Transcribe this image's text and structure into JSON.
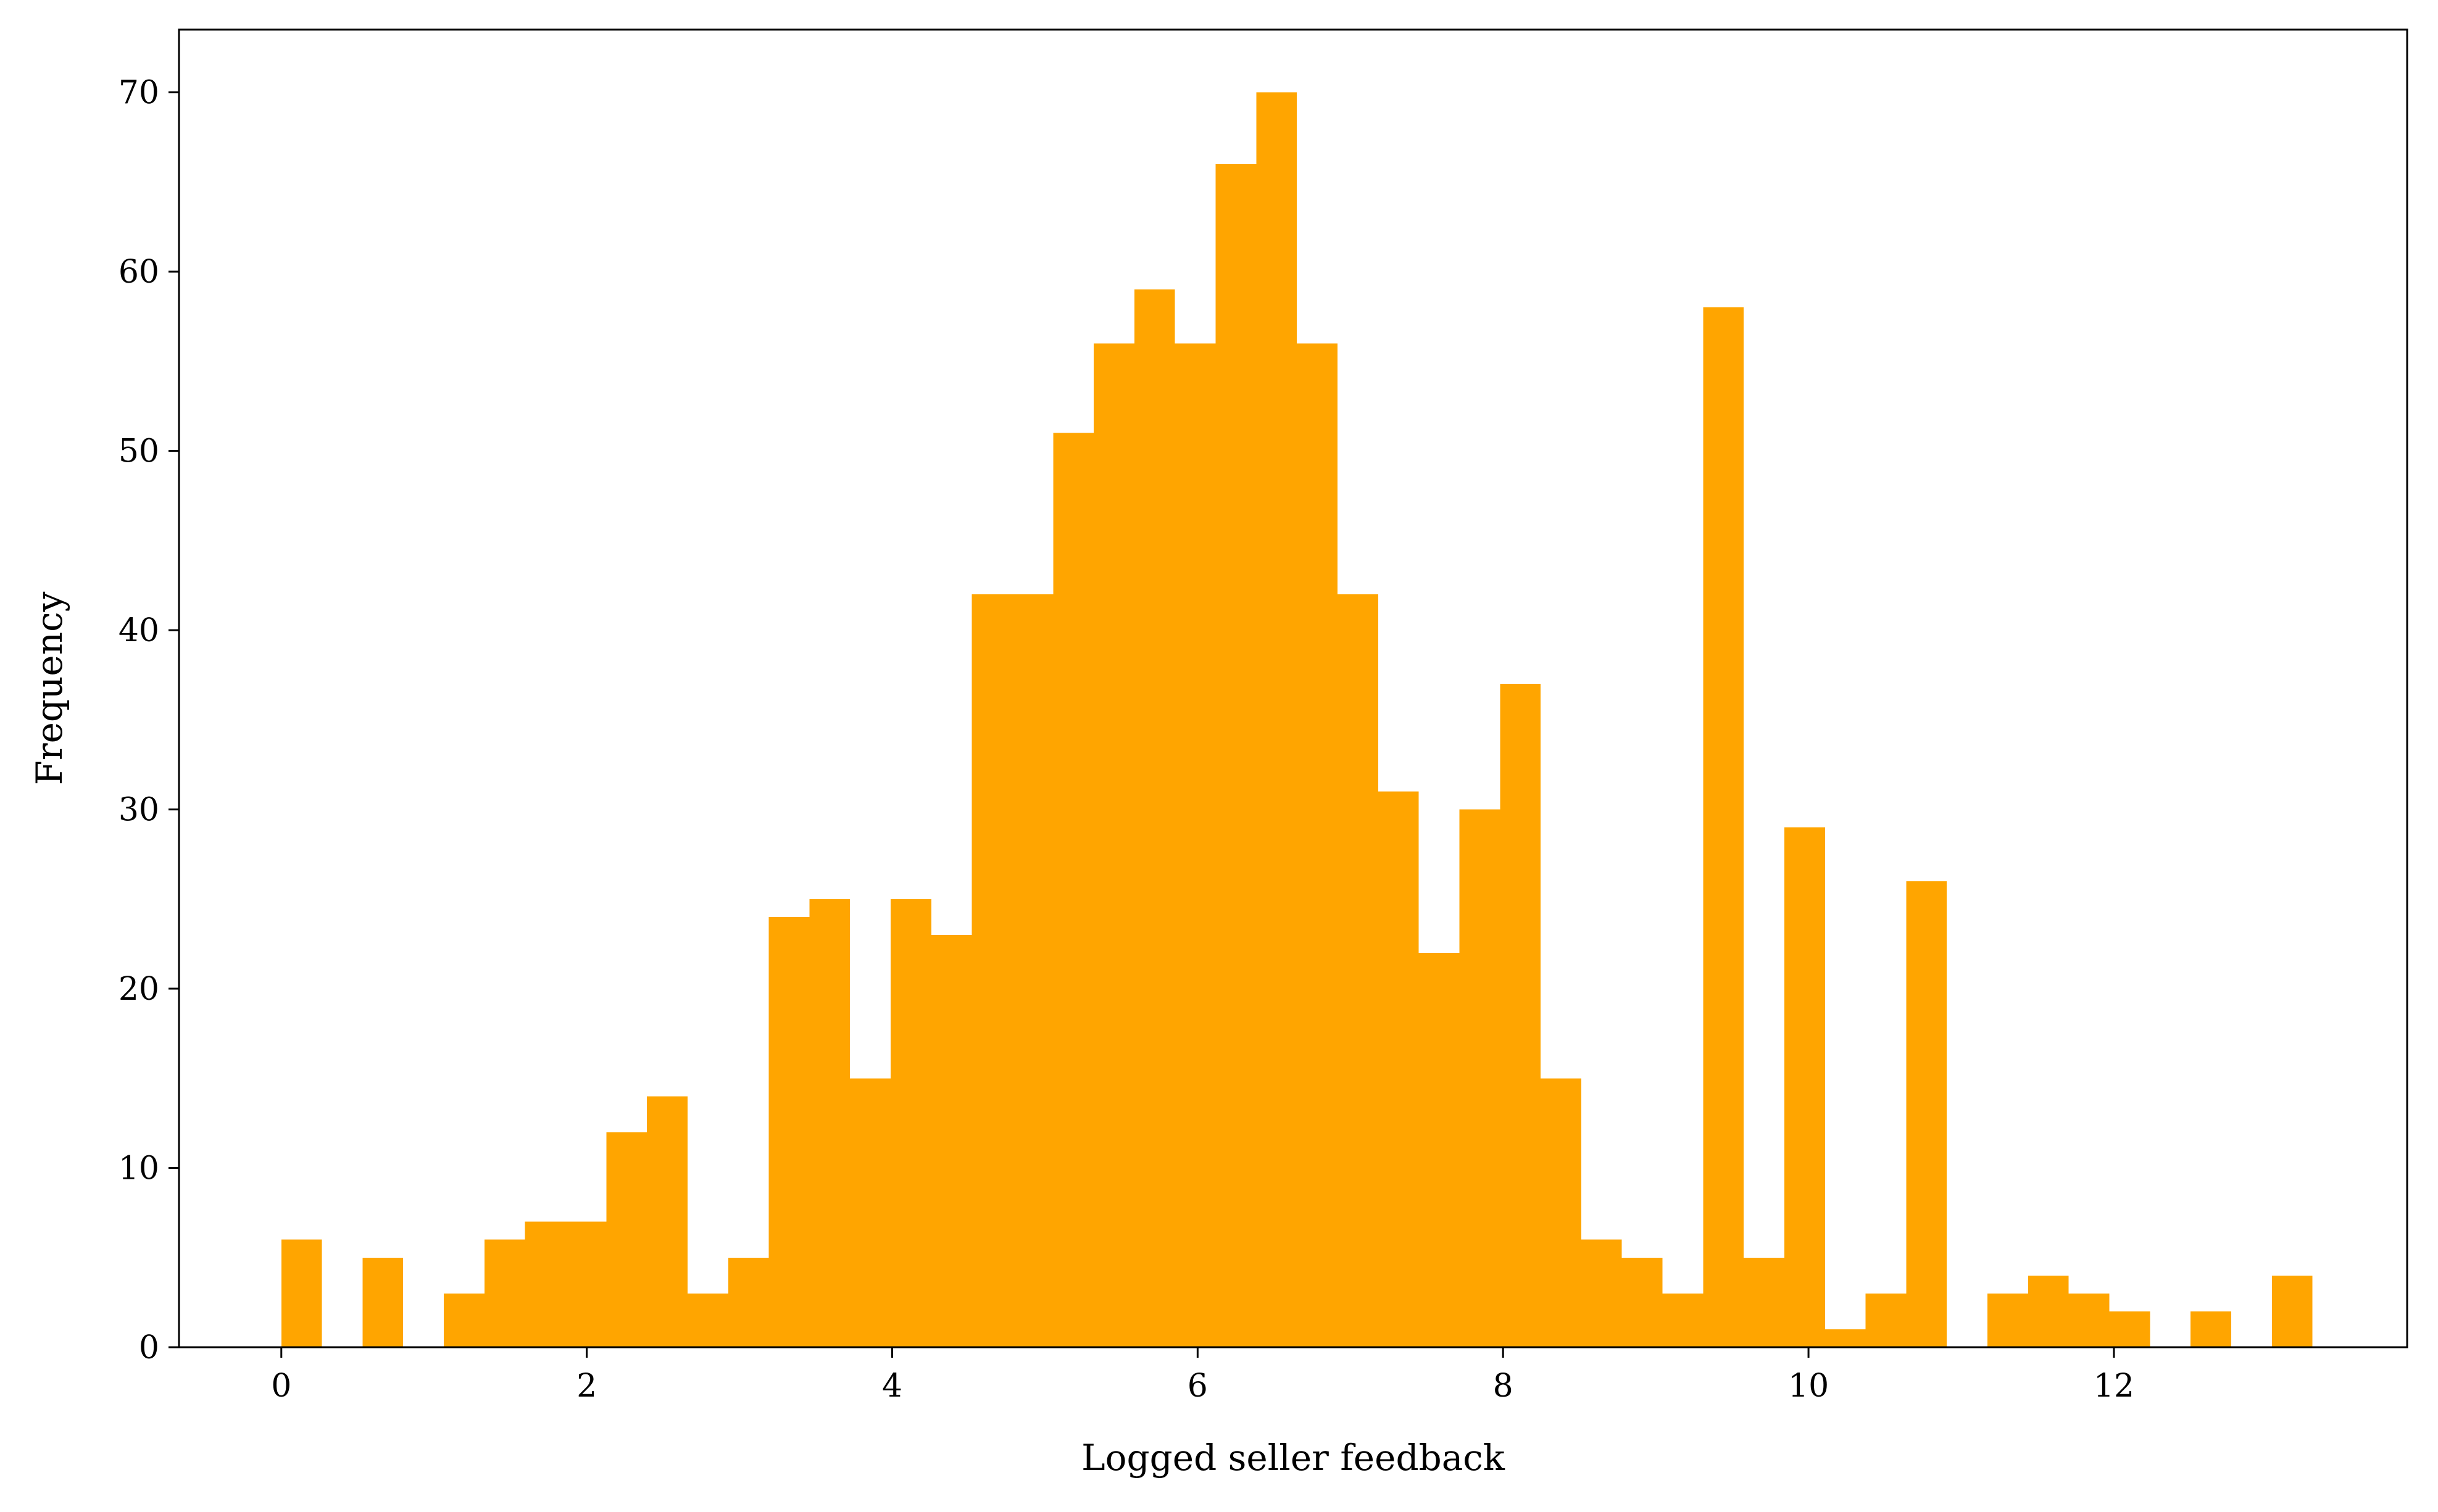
{
  "chart_data": {
    "type": "bar",
    "subtype": "histogram",
    "title": "",
    "xlabel": "Logged seller feedback",
    "ylabel": "Frequency",
    "xlim": [
      -0.67,
      13.92
    ],
    "ylim": [
      0,
      73.5
    ],
    "xticks": [
      0,
      2,
      4,
      6,
      8,
      10,
      12
    ],
    "yticks": [
      0,
      10,
      20,
      30,
      40,
      50,
      60,
      70
    ],
    "bin_start": 0.0,
    "bin_width": 0.266,
    "values": [
      6,
      0,
      5,
      0,
      3,
      6,
      7,
      7,
      12,
      14,
      3,
      5,
      24,
      25,
      15,
      25,
      23,
      42,
      42,
      51,
      56,
      59,
      56,
      66,
      70,
      56,
      42,
      31,
      22,
      30,
      37,
      15,
      6,
      5,
      3,
      58,
      5,
      29,
      1,
      3,
      26,
      0,
      3,
      4,
      3,
      2,
      0,
      2,
      0,
      4
    ],
    "color": "#FFA500",
    "grid": false,
    "legend": "none"
  }
}
